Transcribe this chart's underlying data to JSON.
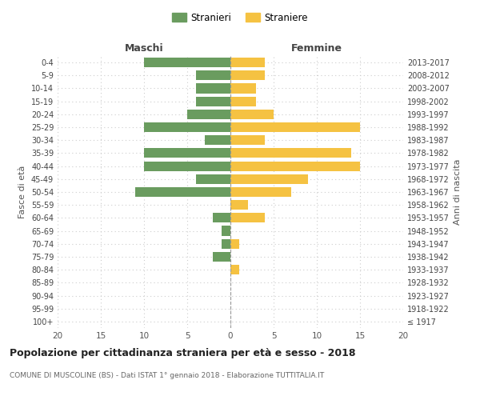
{
  "age_groups": [
    "100+",
    "95-99",
    "90-94",
    "85-89",
    "80-84",
    "75-79",
    "70-74",
    "65-69",
    "60-64",
    "55-59",
    "50-54",
    "45-49",
    "40-44",
    "35-39",
    "30-34",
    "25-29",
    "20-24",
    "15-19",
    "10-14",
    "5-9",
    "0-4"
  ],
  "birth_years": [
    "≤ 1917",
    "1918-1922",
    "1923-1927",
    "1928-1932",
    "1933-1937",
    "1938-1942",
    "1943-1947",
    "1948-1952",
    "1953-1957",
    "1958-1962",
    "1963-1967",
    "1968-1972",
    "1973-1977",
    "1978-1982",
    "1983-1987",
    "1988-1992",
    "1993-1997",
    "1998-2002",
    "2003-2007",
    "2008-2012",
    "2013-2017"
  ],
  "maschi": [
    0,
    0,
    0,
    0,
    0,
    2,
    1,
    1,
    2,
    0,
    11,
    4,
    10,
    10,
    3,
    10,
    5,
    4,
    4,
    4,
    10
  ],
  "femmine": [
    0,
    0,
    0,
    0,
    1,
    0,
    1,
    0,
    4,
    2,
    7,
    9,
    15,
    14,
    4,
    15,
    5,
    3,
    3,
    4,
    4
  ],
  "maschi_color": "#6a9c5f",
  "femmine_color": "#f5c242",
  "title": "Popolazione per cittadinanza straniera per età e sesso - 2018",
  "subtitle": "COMUNE DI MUSCOLINE (BS) - Dati ISTAT 1° gennaio 2018 - Elaborazione TUTTITALIA.IT",
  "left_header": "Maschi",
  "right_header": "Femmine",
  "left_ylabel": "Fasce di età",
  "right_ylabel": "Anni di nascita",
  "legend_maschi": "Stranieri",
  "legend_femmine": "Straniere",
  "xlim": 20,
  "background_color": "#ffffff",
  "grid_color": "#cccccc"
}
